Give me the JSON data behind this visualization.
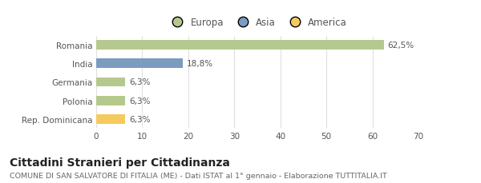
{
  "categories": [
    "Romania",
    "India",
    "Germania",
    "Polonia",
    "Rep. Dominicana"
  ],
  "values": [
    62.5,
    18.8,
    6.3,
    6.3,
    6.3
  ],
  "labels": [
    "62,5%",
    "18,8%",
    "6,3%",
    "6,3%",
    "6,3%"
  ],
  "colors": [
    "#b5c98e",
    "#7b9bbf",
    "#b5c98e",
    "#b5c98e",
    "#f5ca5e"
  ],
  "legend_items": [
    {
      "label": "Europa",
      "color": "#b5c98e"
    },
    {
      "label": "Asia",
      "color": "#7b9bbf"
    },
    {
      "label": "America",
      "color": "#f5ca5e"
    }
  ],
  "xlim": [
    0,
    70
  ],
  "xticks": [
    0,
    10,
    20,
    30,
    40,
    50,
    60,
    70
  ],
  "title": "Cittadini Stranieri per Cittadinanza",
  "subtitle": "COMUNE DI SAN SALVATORE DI FITALIA (ME) - Dati ISTAT al 1° gennaio - Elaborazione TUTTITALIA.IT",
  "bg_color": "#ffffff",
  "grid_color": "#e0e0e0",
  "bar_height": 0.5,
  "label_fontsize": 7.5,
  "tick_fontsize": 7.5,
  "title_fontsize": 10,
  "subtitle_fontsize": 6.8,
  "legend_fontsize": 8.5
}
